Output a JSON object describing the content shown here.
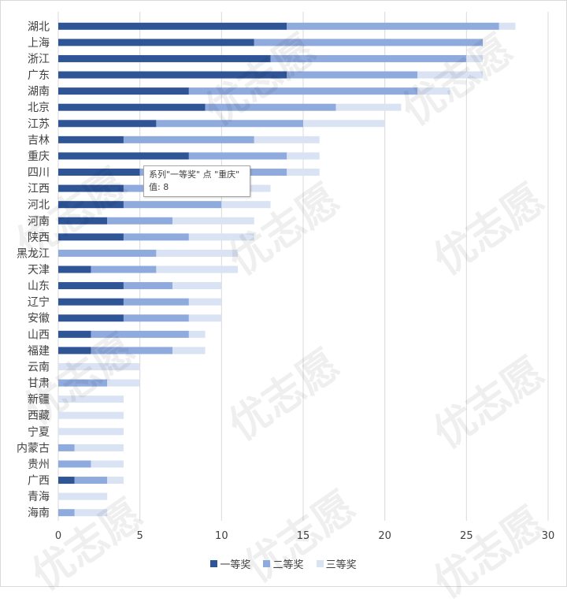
{
  "chart_data": {
    "type": "bar",
    "orientation": "horizontal",
    "stacked": true,
    "categories": [
      "湖北",
      "上海",
      "浙江",
      "广东",
      "湖南",
      "北京",
      "江苏",
      "吉林",
      "重庆",
      "四川",
      "江西",
      "河北",
      "河南",
      "陕西",
      "黑龙江",
      "天津",
      "山东",
      "辽宁",
      "安徽",
      "山西",
      "福建",
      "云南",
      "甘肃",
      "新疆",
      "西藏",
      "宁夏",
      "内蒙古",
      "贵州",
      "广西",
      "青海",
      "海南"
    ],
    "series": [
      {
        "name": "一等奖",
        "color": "#2f5597",
        "values": [
          14,
          12,
          13,
          14,
          8,
          9,
          6,
          4,
          8,
          5,
          4,
          4,
          3,
          4,
          0,
          2,
          4,
          4,
          4,
          2,
          2,
          0,
          0,
          0,
          0,
          0,
          0,
          0,
          1,
          0,
          0
        ]
      },
      {
        "name": "二等奖",
        "color": "#8faadc",
        "values": [
          13,
          14,
          12,
          8,
          14,
          8,
          9,
          8,
          6,
          9,
          5,
          6,
          4,
          4,
          6,
          4,
          3,
          4,
          4,
          6,
          5,
          0,
          3,
          0,
          0,
          0,
          1,
          2,
          2,
          0,
          1
        ]
      },
      {
        "name": "三等奖",
        "color": "#dae3f3",
        "values": [
          1,
          0,
          1,
          4,
          2,
          4,
          5,
          4,
          2,
          2,
          4,
          3,
          5,
          4,
          5,
          5,
          3,
          2,
          2,
          1,
          2,
          5,
          2,
          4,
          4,
          4,
          3,
          2,
          1,
          3,
          2
        ]
      }
    ],
    "xlim": [
      0,
      30
    ],
    "xticks": [
      "0",
      "5",
      "10",
      "15",
      "20",
      "25",
      "30"
    ],
    "grid": true,
    "legend_position": "bottom"
  },
  "tooltip": {
    "line1": "系列\"一等奖\" 点 \"重庆\"",
    "line2": "值: 8"
  },
  "watermark": {
    "text": "优志愿"
  }
}
